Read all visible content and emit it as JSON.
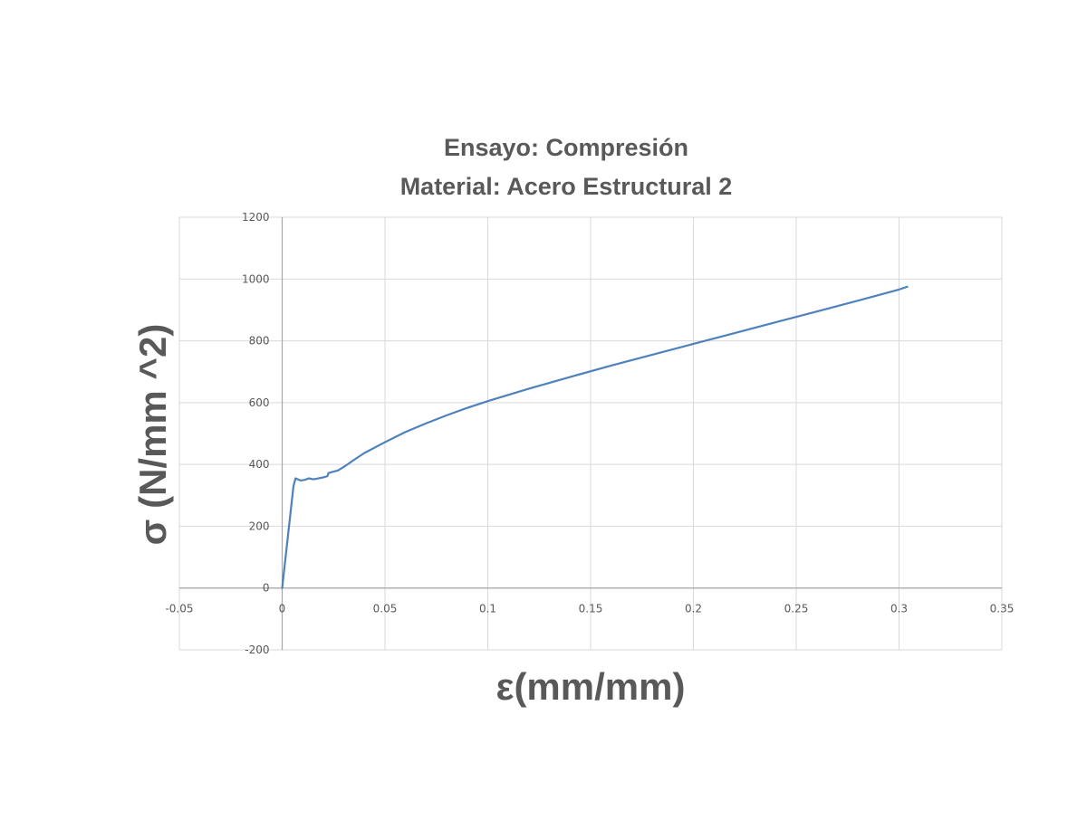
{
  "chart_data": {
    "type": "line",
    "title": [
      "Ensayo: Compresión",
      "Material: Acero Estructural 2"
    ],
    "xlabel": "ε(mm/mm)",
    "ylabel": "σ (N/mm ^2)",
    "xlim": [
      -0.05,
      0.35
    ],
    "ylim": [
      -200,
      1200
    ],
    "x_ticks": [
      -0.05,
      0,
      0.05,
      0.1,
      0.15,
      0.2,
      0.25,
      0.3,
      0.35
    ],
    "x_tick_labels": [
      "-0.05",
      "0",
      "0.05",
      "0.1",
      "0.15",
      "0.2",
      "0.25",
      "0.3",
      "0.35"
    ],
    "y_ticks": [
      -200,
      0,
      200,
      400,
      600,
      800,
      1000,
      1200
    ],
    "y_tick_labels": [
      "-200",
      "0",
      "200",
      "400",
      "600",
      "800",
      "1000",
      "1200"
    ],
    "grid": true,
    "legend": "none",
    "line_color": "#4f81bd",
    "series": [
      {
        "x": [
          0,
          0.002,
          0.004,
          0.0055,
          0.0065,
          0.0075,
          0.009,
          0.011,
          0.013,
          0.015,
          0.017,
          0.02,
          0.022,
          0.0225,
          0.024,
          0.027,
          0.03,
          0.035,
          0.04,
          0.05,
          0.06,
          0.07,
          0.08,
          0.09,
          0.1,
          0.12,
          0.14,
          0.16,
          0.18,
          0.2,
          0.22,
          0.24,
          0.26,
          0.28,
          0.3,
          0.304
        ],
        "y": [
          0,
          120,
          240,
          330,
          355,
          352,
          348,
          350,
          355,
          352,
          354,
          358,
          362,
          372,
          375,
          380,
          392,
          415,
          437,
          472,
          505,
          533,
          559,
          583,
          605,
          645,
          683,
          720,
          755,
          790,
          825,
          860,
          895,
          930,
          966,
          975
        ]
      }
    ]
  }
}
